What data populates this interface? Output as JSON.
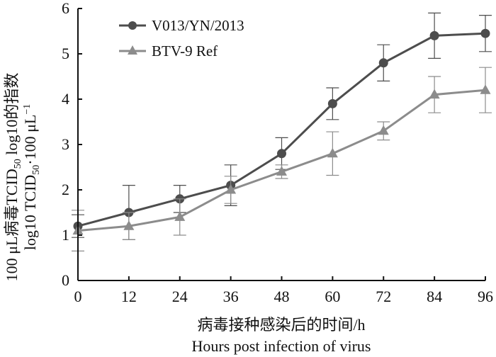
{
  "chart_data": {
    "type": "line",
    "x": [
      0,
      12,
      24,
      36,
      48,
      60,
      72,
      84,
      96
    ],
    "xlim": [
      0,
      96
    ],
    "ylim": [
      0,
      6
    ],
    "x_ticks": [
      "0",
      "12",
      "24",
      "36",
      "48",
      "60",
      "72",
      "84",
      "96"
    ],
    "y_ticks": [
      "0",
      "1",
      "2",
      "3",
      "4",
      "5",
      "6"
    ],
    "xlabel_cn": "病毒接种感染后的时间/h",
    "xlabel_en": "Hours post infection of virus",
    "ylabel_cn": "100 μL病毒TCID",
    "ylabel_cn_sub": "50",
    "ylabel_cn_tail": " log10的指数",
    "ylabel_en": "log10 TCID",
    "ylabel_en_sub": "50",
    "ylabel_en_tail": "·100 μL",
    "ylabel_en_sup": "−1",
    "grid": false,
    "legend_position": "top-left",
    "series": [
      {
        "name": "V013/YN/2013",
        "marker": "circle",
        "color": "#4d4d4d",
        "values": [
          1.2,
          1.5,
          1.8,
          2.1,
          2.8,
          3.9,
          4.8,
          5.4,
          5.45
        ],
        "error": [
          0.25,
          0.6,
          0.3,
          0.45,
          0.35,
          0.35,
          0.4,
          0.5,
          0.4
        ]
      },
      {
        "name": "BTV-9 Ref",
        "marker": "triangle",
        "color": "#8c8c8c",
        "values": [
          1.1,
          1.2,
          1.4,
          2.0,
          2.4,
          2.8,
          3.3,
          4.1,
          4.2
        ],
        "error": [
          0.45,
          0.3,
          0.4,
          0.3,
          0.15,
          0.48,
          0.2,
          0.4,
          0.5
        ]
      }
    ]
  }
}
